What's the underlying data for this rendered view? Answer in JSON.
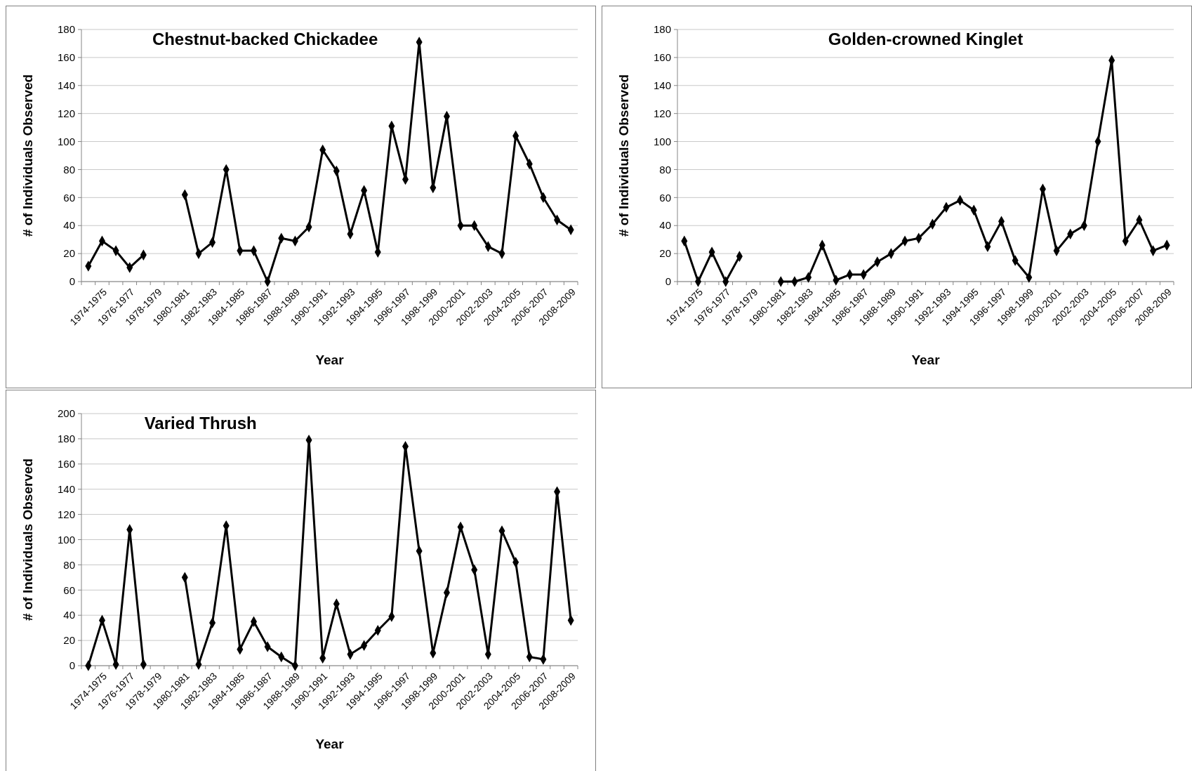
{
  "chart_data": [
    {
      "type": "line",
      "title": "Chestnut-backed Chickadee",
      "xlabel": "Year",
      "ylabel": "# of Individuals Observed",
      "categories": [
        "1974-1975",
        null,
        "1976-1977",
        null,
        "1978-1979",
        null,
        "1980-1981",
        null,
        "1982-1983",
        null,
        "1984-1985",
        null,
        "1986-1987",
        null,
        "1988-1989",
        null,
        "1990-1991",
        null,
        "1992-1993",
        null,
        "1994-1995",
        null,
        "1996-1997",
        null,
        "1998-1999",
        null,
        "2000-2001",
        null,
        "2002-2003",
        null,
        "2004-2005",
        null,
        "2006-2007",
        null,
        "2008-2009",
        null
      ],
      "series": [
        {
          "color": "#000000",
          "values": [
            11,
            29,
            22,
            10,
            19,
            null,
            null,
            62,
            20,
            28,
            80,
            22,
            22,
            0,
            31,
            29,
            39,
            94,
            79,
            34,
            65,
            21,
            111,
            73,
            171,
            67,
            118,
            40,
            40,
            25,
            20,
            104,
            84,
            60,
            44,
            37
          ]
        }
      ],
      "ylim": [
        0,
        180
      ],
      "yticks": [
        0,
        20,
        40,
        60,
        80,
        100,
        120,
        140,
        160,
        180
      ],
      "grid": "y",
      "marker": "diamond",
      "line_style": "solid"
    },
    {
      "type": "line",
      "title": "Golden-crowned Kinglet",
      "xlabel": "Year",
      "ylabel": "# of Individuals Observed",
      "categories": [
        "1974-1975",
        null,
        "1976-1977",
        null,
        "1978-1979",
        null,
        "1980-1981",
        null,
        "1982-1983",
        null,
        "1984-1985",
        null,
        "1986-1987",
        null,
        "1988-1989",
        null,
        "1990-1991",
        null,
        "1992-1993",
        null,
        "1994-1995",
        null,
        "1996-1997",
        null,
        "1998-1999",
        null,
        "2000-2001",
        null,
        "2002-2003",
        null,
        "2004-2005",
        null,
        "2006-2007",
        null,
        "2008-2009",
        null
      ],
      "series": [
        {
          "color": "#000000",
          "values": [
            29,
            0,
            21,
            0,
            18,
            null,
            null,
            0,
            0,
            3,
            26,
            1,
            5,
            5,
            14,
            20,
            29,
            31,
            41,
            53,
            58,
            51,
            25,
            43,
            15,
            3,
            66,
            22,
            34,
            40,
            100,
            158,
            29,
            44,
            22,
            26
          ]
        }
      ],
      "ylim": [
        0,
        180
      ],
      "yticks": [
        0,
        20,
        40,
        60,
        80,
        100,
        120,
        140,
        160,
        180
      ],
      "grid": "y",
      "marker": "diamond",
      "line_style": "solid"
    },
    {
      "type": "line",
      "title": "Varied Thrush",
      "xlabel": "Year",
      "ylabel": "# of Individuals Observed",
      "categories": [
        "1974-1975",
        null,
        "1976-1977",
        null,
        "1978-1979",
        null,
        "1980-1981",
        null,
        "1982-1983",
        null,
        "1984-1985",
        null,
        "1986-1987",
        null,
        "1988-1989",
        null,
        "1990-1991",
        null,
        "1992-1993",
        null,
        "1994-1995",
        null,
        "1996-1997",
        null,
        "1998-1999",
        null,
        "2000-2001",
        null,
        "2002-2003",
        null,
        "2004-2005",
        null,
        "2006-2007",
        null,
        "2008-2009",
        null
      ],
      "series": [
        {
          "color": "#000000",
          "values": [
            0,
            36,
            1,
            108,
            1,
            null,
            null,
            70,
            1,
            34,
            111,
            13,
            35,
            15,
            7,
            0,
            179,
            6,
            49,
            9,
            16,
            28,
            39,
            174,
            91,
            10,
            58,
            110,
            76,
            9,
            107,
            82,
            7,
            5,
            138,
            36
          ]
        }
      ],
      "ylim": [
        0,
        200
      ],
      "yticks": [
        0,
        20,
        40,
        60,
        80,
        100,
        120,
        140,
        160,
        180,
        200
      ],
      "grid": "y",
      "marker": "diamond",
      "line_style": "solid"
    }
  ]
}
